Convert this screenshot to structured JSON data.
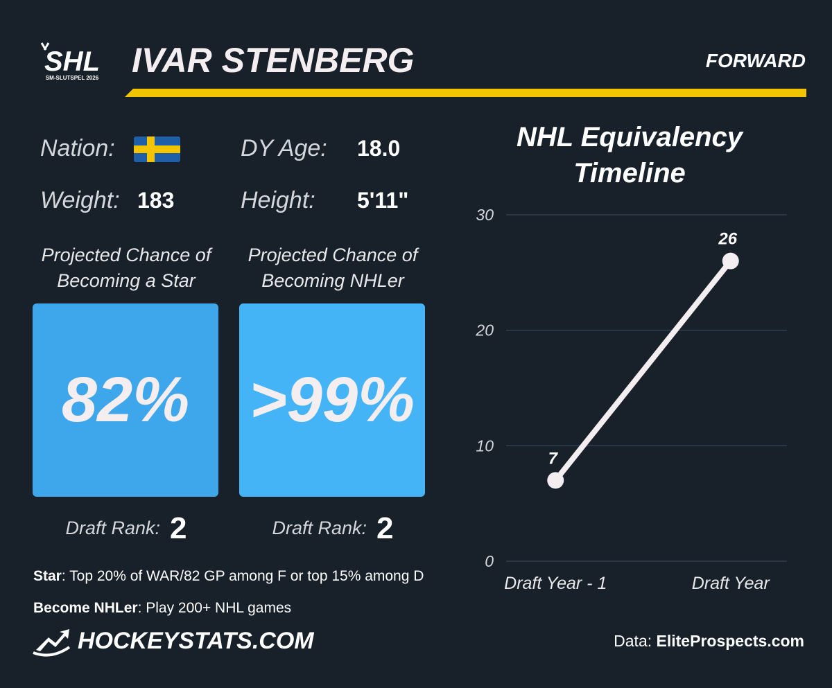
{
  "header": {
    "logo_text": "SHL",
    "logo_subtext": "SM-SLUTSPEL 2026",
    "name": "IVAR STENBERG",
    "position": "FORWARD"
  },
  "info": {
    "nation_label": "Nation:",
    "dy_age_label": "DY Age:",
    "dy_age": "18.0",
    "weight_label": "Weight:",
    "weight": "183",
    "height_label": "Height:",
    "height": "5'11\""
  },
  "projections": [
    {
      "title_lines": [
        "Projected Chance of",
        "Becoming a Star"
      ],
      "value": "82%",
      "rank_label": "Draft Rank:",
      "rank": "2"
    },
    {
      "title_lines": [
        "Projected Chance of",
        "Becoming NHLer"
      ],
      "value": ">99%",
      "rank_label": "Draft Rank:",
      "rank": "2"
    }
  ],
  "notes": [
    {
      "term": "Star",
      "text": ": Top 20% of WAR/82 GP among F or top 15% among D"
    },
    {
      "term": "Become NHLer",
      "text": ": Play 200+ NHL games"
    }
  ],
  "footer": {
    "brand": "HOCKEYSTATS.COM",
    "source_label": "Data:",
    "source": "EliteProspects.com"
  },
  "chart_data": {
    "type": "line",
    "title": "NHL Equivalency Timeline",
    "categories": [
      "Draft Year - 1",
      "Draft Year"
    ],
    "values": [
      7,
      26
    ],
    "color": "#f5eef0",
    "ylim": [
      0,
      30
    ],
    "yticks": [
      0,
      10,
      20,
      30
    ],
    "grid": true
  }
}
